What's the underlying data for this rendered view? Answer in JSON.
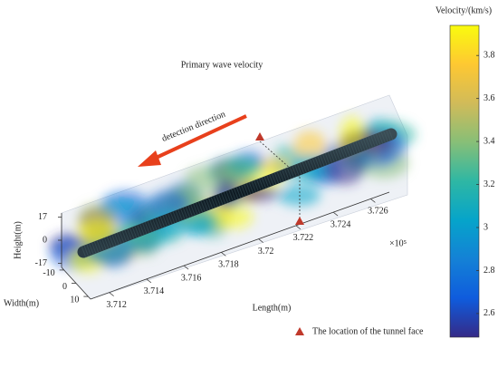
{
  "chart_data": {
    "type": "volume3d",
    "title": "Primary wave velocity",
    "annotation": "detection direction",
    "legend_label": "The location of the tunnel face",
    "x_label": "Length(m)",
    "x_scale_label": "×10⁵",
    "xlim": [
      3.711,
      3.727
    ],
    "xticks": [
      3.712,
      3.714,
      3.716,
      3.718,
      3.72,
      3.722,
      3.724,
      3.726
    ],
    "y_label": "Width(m)",
    "ylim": [
      -12,
      12
    ],
    "yticks": [
      -10,
      0,
      10
    ],
    "z_label": "Height(m)",
    "zlim": [
      -20,
      20
    ],
    "zticks": [
      -17,
      0,
      17
    ],
    "colorbar": {
      "label": "Velocity/(km/s)",
      "lim": [
        2.49,
        3.94
      ],
      "ticks": [
        2.6,
        2.8,
        3,
        3.2,
        3.4,
        3.6,
        3.8
      ],
      "colors": [
        "#352a87",
        "#0f5cdd",
        "#1481d6",
        "#06a4ca",
        "#2eb7a4",
        "#87bf77",
        "#d1bb59",
        "#fec832",
        "#f9fb0e"
      ]
    }
  }
}
